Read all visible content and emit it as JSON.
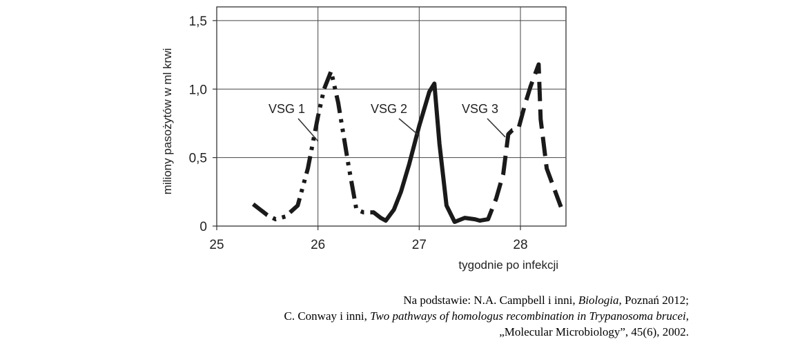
{
  "chart_data": {
    "type": "line",
    "xlabel": "tygodnie po infekcji",
    "ylabel": "miliony pasożytów w ml krwi",
    "xlim": [
      25,
      28.45
    ],
    "ylim": [
      0,
      1.6
    ],
    "x_ticks": [
      "25",
      "26",
      "27",
      "28"
    ],
    "y_ticks": [
      "0",
      "0,5",
      "1,0",
      "1,5"
    ],
    "grid": true,
    "series": [
      {
        "name": "VSG 1",
        "style": "dash-dot-dot",
        "x": [
          25.36,
          25.5,
          25.58,
          25.68,
          25.8,
          25.9,
          26.0,
          26.06,
          26.13,
          26.2,
          26.3,
          26.38,
          26.45,
          26.55
        ],
        "y": [
          0.16,
          0.08,
          0.05,
          0.07,
          0.15,
          0.42,
          0.8,
          1.0,
          1.13,
          0.9,
          0.45,
          0.12,
          0.1,
          0.1
        ]
      },
      {
        "name": "VSG 2",
        "style": "solid",
        "x": [
          26.55,
          26.62,
          26.67,
          26.75,
          26.82,
          26.9,
          27.0,
          27.1,
          27.15,
          27.2,
          27.27,
          27.35,
          27.45,
          27.55,
          27.6
        ],
        "y": [
          0.1,
          0.06,
          0.04,
          0.12,
          0.25,
          0.45,
          0.73,
          0.98,
          1.04,
          0.6,
          0.15,
          0.03,
          0.06,
          0.05,
          0.04
        ]
      },
      {
        "name": "VSG 3",
        "style": "long-dash",
        "x": [
          27.6,
          27.68,
          27.76,
          27.83,
          27.88,
          27.92,
          27.98,
          28.05,
          28.1,
          28.15,
          28.18,
          28.2,
          28.26,
          28.32,
          28.4
        ],
        "y": [
          0.04,
          0.05,
          0.2,
          0.38,
          0.67,
          0.7,
          0.71,
          0.9,
          1.02,
          1.12,
          1.18,
          0.78,
          0.42,
          0.3,
          0.14
        ]
      }
    ],
    "annotations": [
      {
        "text": "VSG 1",
        "series": 0,
        "x": 26.0,
        "y": 0.62
      },
      {
        "text": "VSG 2",
        "series": 1,
        "x": 27.0,
        "y": 0.66
      },
      {
        "text": "VSG 3",
        "series": 2,
        "x": 27.85,
        "y": 0.65
      }
    ]
  },
  "source": {
    "line1_prefix": "Na podstawie: N.A. Campbell i inni, ",
    "line1_italic": "Biologia,",
    "line1_suffix": " Poznań 2012;",
    "line2_prefix": "C. Conway i inni, ",
    "line2_italic": "Two pathways of homologus recombination in Trypanosoma brucei",
    "line2_suffix": ",",
    "line3": "„Molecular Microbiology”, 45(6), 2002."
  }
}
